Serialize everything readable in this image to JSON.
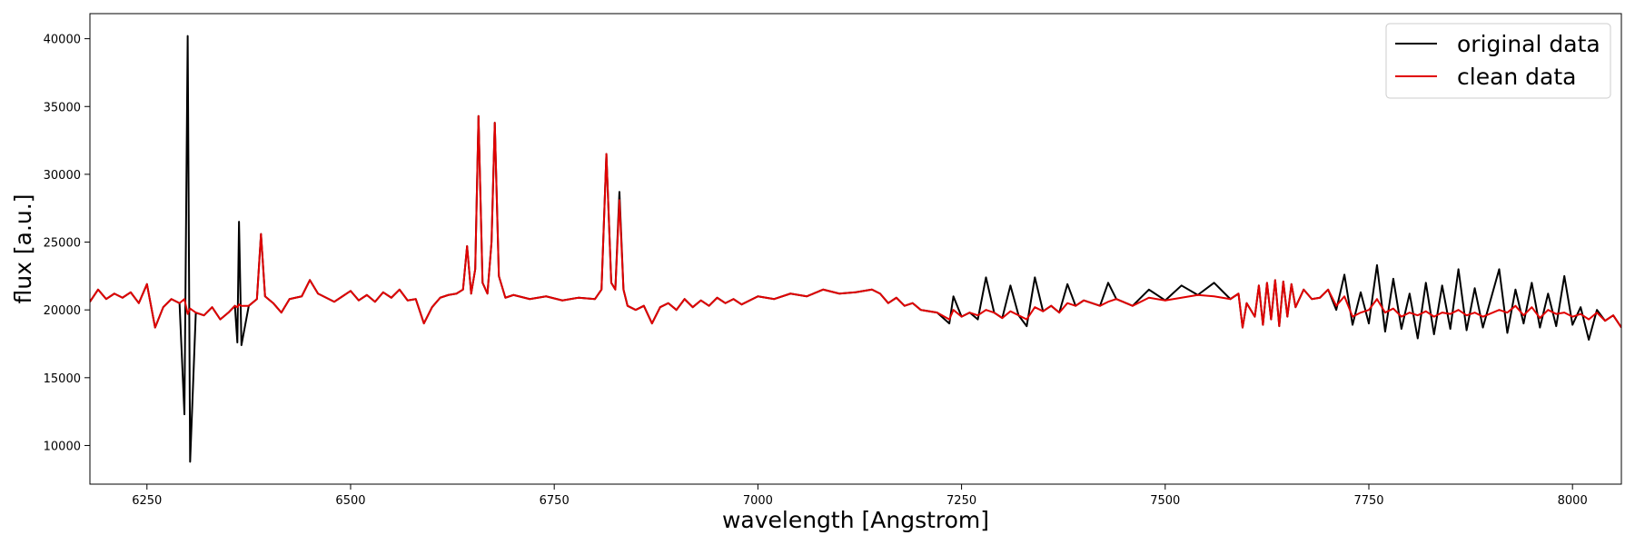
{
  "chart_data": {
    "type": "line",
    "xlabel": "wavelength [Angstrom]",
    "ylabel": "flux [a.u.]",
    "xlim": [
      6180,
      8060
    ],
    "ylim": [
      7150,
      41850
    ],
    "xticks": [
      6250,
      6500,
      6750,
      7000,
      7250,
      7500,
      7750,
      8000
    ],
    "yticks": [
      10000,
      15000,
      20000,
      25000,
      30000,
      35000,
      40000
    ],
    "legend": "upper right",
    "x": [
      6180,
      6190,
      6200,
      6210,
      6220,
      6230,
      6240,
      6250,
      6260,
      6270,
      6280,
      6290,
      6296,
      6300,
      6303,
      6310,
      6320,
      6330,
      6340,
      6350,
      6358,
      6361,
      6363,
      6366,
      6375,
      6385,
      6390,
      6395,
      6405,
      6415,
      6425,
      6440,
      6450,
      6460,
      6470,
      6480,
      6490,
      6500,
      6510,
      6520,
      6530,
      6540,
      6550,
      6560,
      6570,
      6580,
      6590,
      6600,
      6610,
      6620,
      6630,
      6638,
      6643,
      6648,
      6653,
      6657,
      6662,
      6668,
      6673,
      6677,
      6682,
      6690,
      6700,
      6720,
      6740,
      6760,
      6780,
      6800,
      6808,
      6814,
      6820,
      6825,
      6830,
      6835,
      6840,
      6850,
      6860,
      6870,
      6880,
      6890,
      6900,
      6910,
      6920,
      6930,
      6940,
      6950,
      6960,
      6970,
      6980,
      7000,
      7020,
      7040,
      7060,
      7080,
      7100,
      7120,
      7140,
      7150,
      7160,
      7170,
      7180,
      7190,
      7200,
      7220,
      7235,
      7240,
      7250,
      7260,
      7270,
      7280,
      7290,
      7300,
      7310,
      7320,
      7330,
      7340,
      7350,
      7360,
      7370,
      7380,
      7390,
      7400,
      7420,
      7430,
      7440,
      7460,
      7480,
      7500,
      7520,
      7540,
      7560,
      7580,
      7590,
      7595,
      7600,
      7610,
      7615,
      7620,
      7625,
      7630,
      7635,
      7640,
      7645,
      7650,
      7655,
      7660,
      7670,
      7680,
      7690,
      7700,
      7710,
      7720,
      7730,
      7740,
      7750,
      7760,
      7770,
      7780,
      7790,
      7800,
      7810,
      7820,
      7830,
      7840,
      7850,
      7860,
      7870,
      7880,
      7890,
      7910,
      7920,
      7930,
      7940,
      7950,
      7960,
      7970,
      7980,
      7990,
      8000,
      8010,
      8020,
      8030,
      8040,
      8050,
      8060
    ],
    "series": [
      {
        "name": "original data",
        "color": "#000000",
        "values": [
          20600,
          21500,
          20800,
          21200,
          20900,
          21300,
          20500,
          21900,
          18700,
          20200,
          20800,
          20500,
          12300,
          40200,
          8800,
          19800,
          19600,
          20200,
          19300,
          19800,
          20300,
          17600,
          26500,
          17400,
          20300,
          20800,
          25600,
          21000,
          20500,
          19800,
          20800,
          21000,
          22200,
          21200,
          20900,
          20600,
          21000,
          21400,
          20700,
          21100,
          20600,
          21300,
          20900,
          21500,
          20700,
          20800,
          19000,
          20200,
          20900,
          21100,
          21200,
          21500,
          24700,
          21200,
          23000,
          34300,
          22000,
          21200,
          25000,
          33800,
          22500,
          20900,
          21100,
          20800,
          21000,
          20700,
          20900,
          20800,
          21500,
          31500,
          22000,
          21500,
          28700,
          21500,
          20300,
          20000,
          20300,
          19000,
          20200,
          20500,
          20000,
          20800,
          20200,
          20700,
          20300,
          20900,
          20500,
          20800,
          20400,
          21000,
          20800,
          21200,
          21000,
          21500,
          21200,
          21300,
          21500,
          21200,
          20500,
          20900,
          20300,
          20500,
          20000,
          19800,
          19000,
          21000,
          19500,
          19800,
          19300,
          22400,
          19800,
          19400,
          21800,
          19600,
          18800,
          22400,
          19900,
          20300,
          19800,
          21900,
          20300,
          20700,
          20300,
          22000,
          20800,
          20300,
          21500,
          20700,
          21800,
          21100,
          22000,
          20800,
          21200,
          18700,
          20500,
          19500,
          21800,
          18900,
          22000,
          19300,
          22200,
          18800,
          22100,
          19500,
          21900,
          20200,
          21500,
          20800,
          20900,
          21500,
          20000,
          22600,
          18900,
          21300,
          19000,
          23300,
          18400,
          22300,
          18600,
          21200,
          17900,
          22000,
          18200,
          21800,
          18600,
          23000,
          18500,
          21600,
          18700,
          23000,
          18300,
          21500,
          19000,
          22000,
          18700,
          21200,
          18800,
          22500,
          18900,
          20200,
          17800,
          20000,
          19200,
          19600,
          18700
        ]
      },
      {
        "name": "clean data",
        "color": "#e00000",
        "values": [
          20600,
          21500,
          20800,
          21200,
          20900,
          21300,
          20500,
          21900,
          18700,
          20200,
          20800,
          20500,
          20800,
          19700,
          20100,
          19800,
          19600,
          20200,
          19300,
          19800,
          20300,
          20200,
          20400,
          20300,
          20300,
          20800,
          25600,
          21000,
          20500,
          19800,
          20800,
          21000,
          22200,
          21200,
          20900,
          20600,
          21000,
          21400,
          20700,
          21100,
          20600,
          21300,
          20900,
          21500,
          20700,
          20800,
          19000,
          20200,
          20900,
          21100,
          21200,
          21500,
          24700,
          21200,
          23000,
          34300,
          22000,
          21200,
          25000,
          33800,
          22500,
          20900,
          21100,
          20800,
          21000,
          20700,
          20900,
          20800,
          21500,
          31500,
          22000,
          21500,
          28100,
          21500,
          20300,
          20000,
          20300,
          19000,
          20200,
          20500,
          20000,
          20800,
          20200,
          20700,
          20300,
          20900,
          20500,
          20800,
          20400,
          21000,
          20800,
          21200,
          21000,
          21500,
          21200,
          21300,
          21500,
          21200,
          20500,
          20900,
          20300,
          20500,
          20000,
          19800,
          19300,
          20000,
          19500,
          19800,
          19600,
          20000,
          19800,
          19400,
          19900,
          19600,
          19300,
          20200,
          19900,
          20300,
          19800,
          20500,
          20300,
          20700,
          20300,
          20600,
          20800,
          20300,
          20900,
          20700,
          20900,
          21100,
          21000,
          20800,
          21200,
          18700,
          20500,
          19500,
          21800,
          18900,
          22000,
          19300,
          22200,
          18800,
          22100,
          19500,
          21900,
          20200,
          21500,
          20800,
          20900,
          21500,
          20300,
          21000,
          19500,
          19800,
          20000,
          20800,
          19800,
          20100,
          19500,
          19800,
          19600,
          19900,
          19500,
          19800,
          19700,
          20000,
          19600,
          19800,
          19500,
          20000,
          19800,
          20300,
          19600,
          20200,
          19400,
          20000,
          19700,
          19800,
          19500,
          19700,
          19300,
          19800,
          19200,
          19600,
          18700
        ]
      }
    ]
  }
}
